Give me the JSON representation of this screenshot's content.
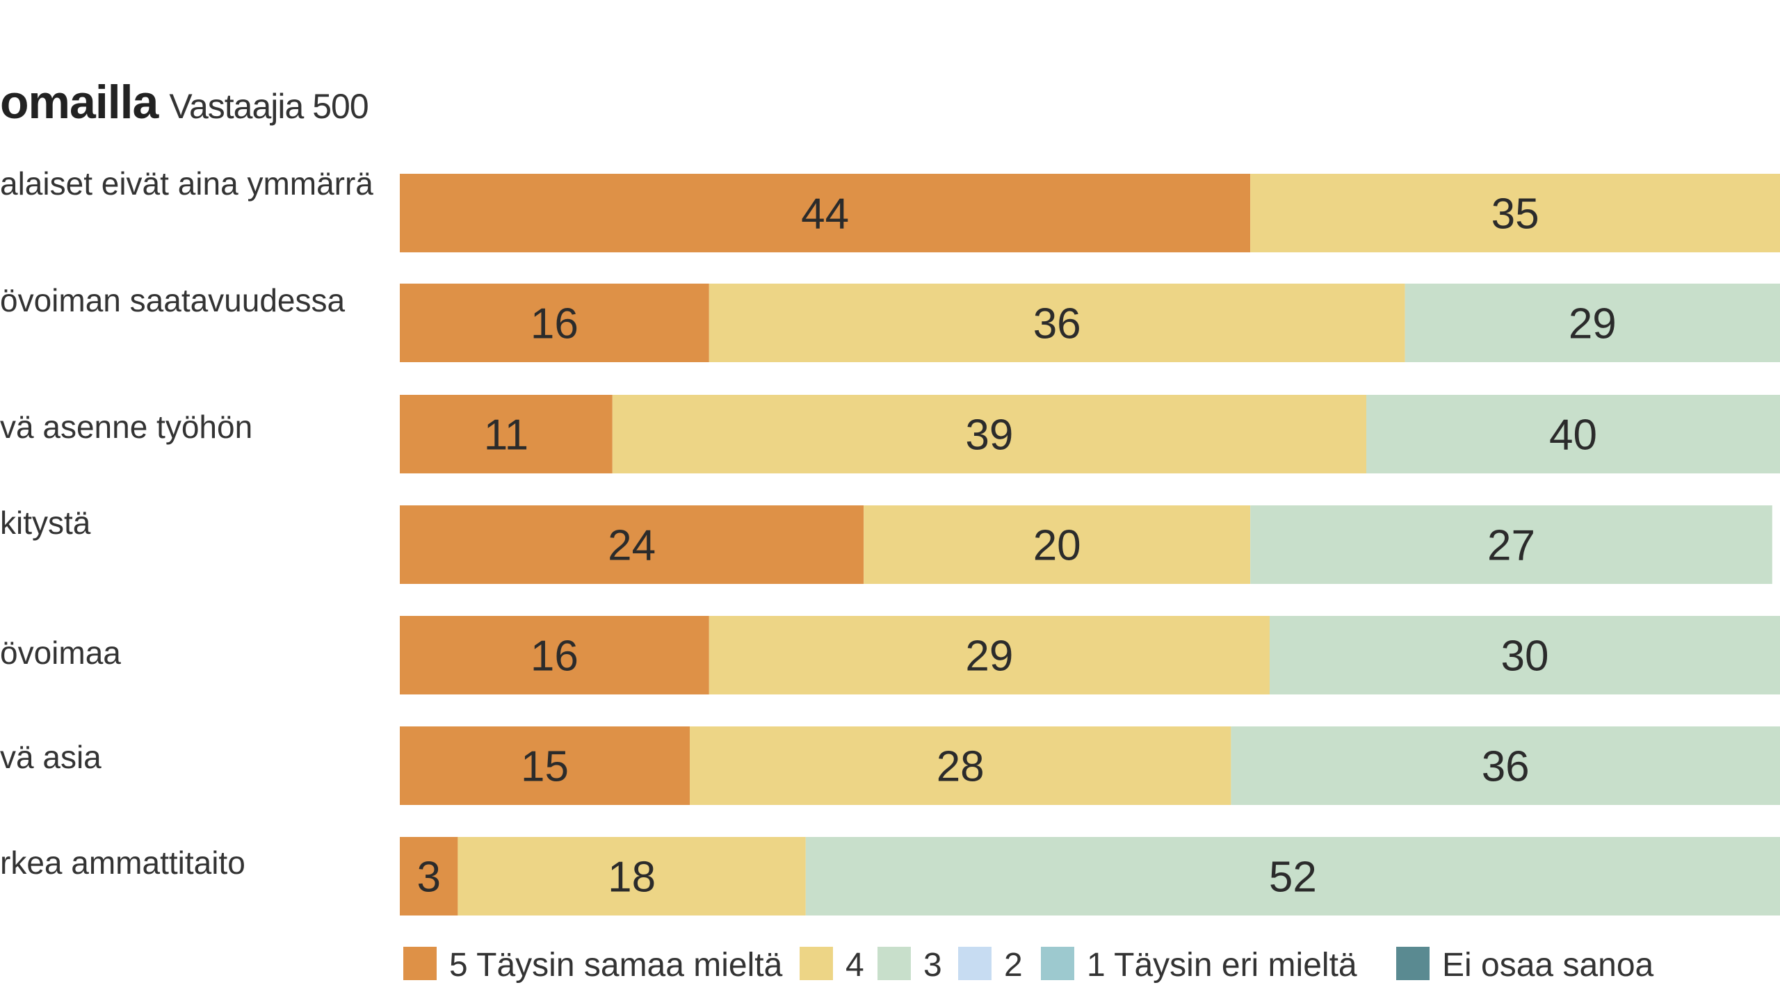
{
  "chart_data": {
    "type": "bar",
    "orientation": "horizontal",
    "stacked": true,
    "title": "omailla",
    "subtitle": "Vastaajia 500",
    "categories": [
      "alaiset eivät aina ymmärrä",
      "övoiman saatavuudessa",
      "vä asenne työhön",
      "kitystä",
      "övoimaa",
      "vä asia",
      "rkea ammattitaito"
    ],
    "series": [
      {
        "name": "5 Täysin samaa mieltä",
        "color": "#DE9147",
        "values": [
          44,
          16,
          11,
          24,
          16,
          15,
          3
        ]
      },
      {
        "name": "4",
        "color": "#EDD586",
        "values": [
          35,
          36,
          39,
          20,
          29,
          28,
          18
        ]
      },
      {
        "name": "3",
        "color": "#C8DFCB",
        "values": [
          null,
          29,
          40,
          27,
          30,
          36,
          52
        ]
      },
      {
        "name": "2",
        "color": "#C7DCF2",
        "values": [
          null,
          null,
          null,
          null,
          null,
          null,
          null
        ]
      },
      {
        "name": "1 Täysin eri mieltä",
        "color": "#9DC9CF",
        "values": [
          null,
          null,
          null,
          null,
          null,
          null,
          null
        ]
      },
      {
        "name": "Ei osaa sanoa",
        "color": "#5A8A91",
        "values": [
          null,
          null,
          null,
          null,
          null,
          null,
          null
        ]
      }
    ],
    "legend_position": "bottom",
    "grid": false
  }
}
